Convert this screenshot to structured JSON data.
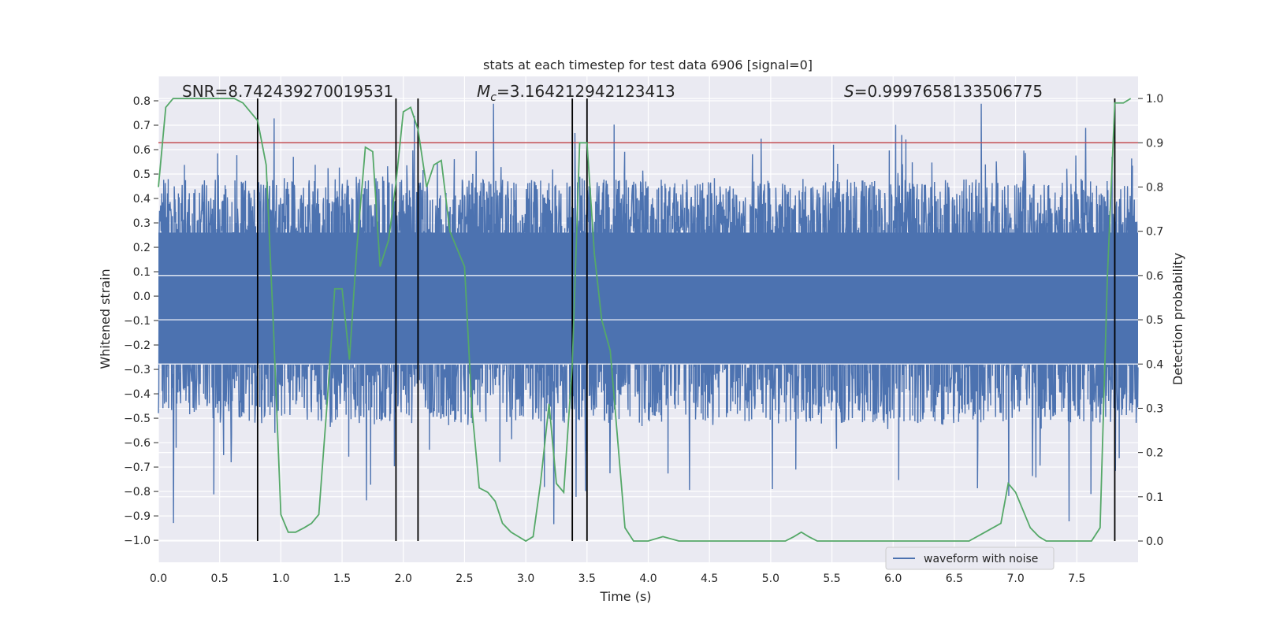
{
  "chart_data": {
    "type": "line",
    "title": "stats at each timestep for test data 6906 [signal=0]",
    "xlabel": "Time (s)",
    "ylabel": "Whitened strain",
    "y2label": "Detection probability",
    "xlim": [
      0.0,
      8.0
    ],
    "ylim": [
      -1.09,
      0.9
    ],
    "y2lim": [
      -0.048,
      1.05
    ],
    "xticks": [
      "0.0",
      "0.5",
      "1.0",
      "1.5",
      "2.0",
      "2.5",
      "3.0",
      "3.5",
      "4.0",
      "4.5",
      "5.0",
      "5.5",
      "6.0",
      "6.5",
      "7.0",
      "7.5"
    ],
    "yticks": [
      "0.8",
      "0.7",
      "0.6",
      "0.5",
      "0.4",
      "0.3",
      "0.2",
      "0.1",
      "0.0",
      "−0.1",
      "−0.2",
      "−0.3",
      "−0.4",
      "−0.5",
      "−0.6",
      "−0.7",
      "−0.8",
      "−0.9",
      "−1.0"
    ],
    "y2ticks": [
      "1.0",
      "0.9",
      "0.8",
      "0.7",
      "0.6",
      "0.5",
      "0.4",
      "0.3",
      "0.2",
      "0.1",
      "0.0"
    ],
    "grid": true,
    "legend": {
      "placement": "lower-right",
      "entries": [
        "waveform with noise"
      ]
    },
    "stats": {
      "snr": "SNR=8.742439270019531",
      "mc_symbol": "M",
      "mc_sub": "c",
      "mc_value": "=3.164212942123413",
      "s_symbol": "S",
      "s_value": "=0.9997658133506775"
    },
    "threshold": {
      "axis": "right",
      "value": 0.9,
      "color": "#c44e52"
    },
    "vlines": [
      0.81,
      1.94,
      2.12,
      3.38,
      3.5,
      7.81
    ],
    "waveform": {
      "name": "waveform with noise",
      "color": "#4c72b0",
      "typical_envelope": [
        -0.28,
        0.26
      ],
      "max_peak": 0.8,
      "min_peak": -1.0
    },
    "probability": {
      "color": "#55a868",
      "x": [
        0.0,
        0.06,
        0.12,
        0.19,
        0.25,
        0.31,
        0.38,
        0.44,
        0.5,
        0.56,
        0.62,
        0.69,
        0.75,
        0.81,
        0.88,
        0.94,
        1.0,
        1.06,
        1.12,
        1.19,
        1.25,
        1.31,
        1.38,
        1.44,
        1.5,
        1.56,
        1.62,
        1.69,
        1.75,
        1.81,
        1.88,
        1.94,
        2.0,
        2.06,
        2.12,
        2.19,
        2.25,
        2.31,
        2.38,
        2.44,
        2.5,
        2.56,
        2.62,
        2.69,
        2.75,
        2.81,
        2.88,
        2.94,
        3.0,
        3.06,
        3.12,
        3.19,
        3.25,
        3.31,
        3.38,
        3.44,
        3.5,
        3.56,
        3.62,
        3.69,
        3.75,
        3.81,
        3.88,
        3.94,
        4.0,
        4.12,
        4.25,
        4.5,
        4.75,
        4.88,
        5.0,
        5.06,
        5.12,
        5.19,
        5.25,
        5.31,
        5.38,
        5.62,
        5.88,
        6.12,
        6.38,
        6.62,
        6.75,
        6.88,
        6.94,
        7.0,
        7.06,
        7.12,
        7.19,
        7.25,
        7.31,
        7.38,
        7.5,
        7.62,
        7.69,
        7.75,
        7.81,
        7.88,
        7.94
      ],
      "y": [
        0.8,
        0.98,
        1.0,
        1.0,
        1.0,
        1.0,
        1.0,
        1.0,
        1.0,
        1.0,
        1.0,
        0.99,
        0.97,
        0.95,
        0.85,
        0.48,
        0.06,
        0.02,
        0.02,
        0.03,
        0.04,
        0.06,
        0.32,
        0.57,
        0.57,
        0.41,
        0.66,
        0.89,
        0.88,
        0.62,
        0.68,
        0.81,
        0.97,
        0.98,
        0.93,
        0.8,
        0.85,
        0.86,
        0.7,
        0.66,
        0.62,
        0.3,
        0.12,
        0.11,
        0.09,
        0.04,
        0.02,
        0.01,
        0.0,
        0.01,
        0.13,
        0.31,
        0.13,
        0.11,
        0.4,
        0.9,
        0.9,
        0.65,
        0.5,
        0.43,
        0.23,
        0.03,
        0.0,
        0.0,
        0.0,
        0.01,
        0.0,
        0.0,
        0.0,
        0.0,
        0.0,
        0.0,
        0.0,
        0.01,
        0.02,
        0.01,
        0.0,
        0.0,
        0.0,
        0.0,
        0.0,
        0.0,
        0.02,
        0.04,
        0.13,
        0.11,
        0.07,
        0.03,
        0.01,
        0.0,
        0.0,
        0.0,
        0.0,
        0.0,
        0.03,
        0.6,
        0.99,
        0.99,
        1.0
      ]
    }
  }
}
